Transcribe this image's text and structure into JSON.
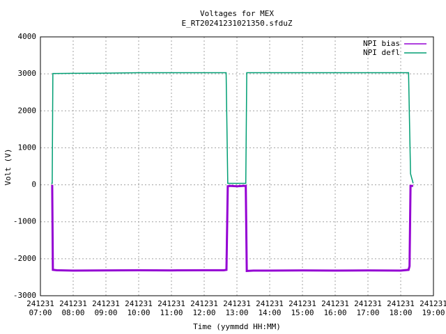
{
  "chart_data": {
    "type": "line",
    "title": "Voltages for MEX",
    "subtitle": "E_RT20241231021350.sfduZ",
    "x_label": "Time (yymmdd HH:MM)",
    "y_label": "Volt (V)",
    "xlim": [
      7,
      19
    ],
    "xticks": [
      {
        "value": 7,
        "label": "241231\n07:00"
      },
      {
        "value": 8,
        "label": "241231\n08:00"
      },
      {
        "value": 9,
        "label": "241231\n09:00"
      },
      {
        "value": 10,
        "label": "241231\n10:00"
      },
      {
        "value": 11,
        "label": "241231\n11:00"
      },
      {
        "value": 12,
        "label": "241231\n12:00"
      },
      {
        "value": 13,
        "label": "241231\n13:00"
      },
      {
        "value": 14,
        "label": "241231\n14:00"
      },
      {
        "value": 15,
        "label": "241231\n15:00"
      },
      {
        "value": 16,
        "label": "241231\n16:00"
      },
      {
        "value": 17,
        "label": "241231\n17:00"
      },
      {
        "value": 18,
        "label": "241231\n18:00"
      },
      {
        "value": 19,
        "label": "241231\n19:00"
      }
    ],
    "ylim": [
      -3000,
      4000
    ],
    "yticks": [
      -3000,
      -2000,
      -1000,
      0,
      1000,
      2000,
      3000,
      4000
    ],
    "grid": true,
    "legend": "top-right",
    "series": [
      {
        "name": "NPI bias",
        "color": "#9400d3",
        "x": [
          7.33,
          7.36,
          7.38,
          7.5,
          8,
          9,
          10,
          11,
          12,
          12.6,
          12.68,
          12.72,
          12.8,
          13,
          13.2,
          13.27,
          13.3,
          13.5,
          14,
          15,
          16,
          17,
          18,
          18.24,
          18.27,
          18.3,
          18.38
        ],
        "values": [
          -30,
          -30,
          -2300,
          -2310,
          -2320,
          -2315,
          -2310,
          -2315,
          -2310,
          -2310,
          -2300,
          -40,
          -30,
          -40,
          -30,
          -30,
          -2330,
          -2320,
          -2320,
          -2315,
          -2320,
          -2315,
          -2320,
          -2300,
          -2200,
          -30,
          -30
        ]
      },
      {
        "name": "NPI defl",
        "color": "#009e73",
        "x": [
          7.33,
          7.36,
          7.38,
          7.5,
          8,
          9,
          10,
          11,
          12,
          12.6,
          12.67,
          12.72,
          13,
          13.27,
          13.3,
          13.5,
          14,
          15,
          16,
          17,
          18,
          18.24,
          18.3,
          18.38
        ],
        "values": [
          40,
          40,
          3010,
          3010,
          3015,
          3020,
          3030,
          3030,
          3030,
          3030,
          3030,
          40,
          40,
          40,
          3030,
          3030,
          3030,
          3030,
          3030,
          3030,
          3030,
          3030,
          300,
          40
        ]
      }
    ]
  }
}
